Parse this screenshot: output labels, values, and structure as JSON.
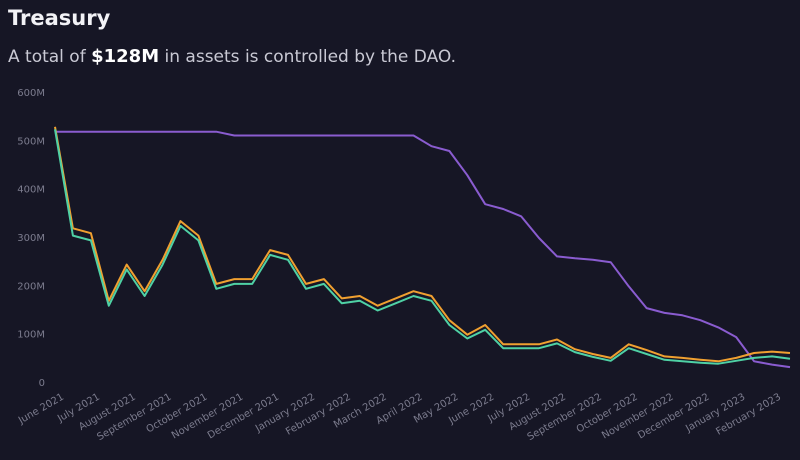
{
  "chart_data": {
    "type": "line",
    "title": "Treasury",
    "subtitle": {
      "before": "A total of ",
      "highlight": "$128M",
      "after": " in assets is controlled by the DAO."
    },
    "categories": [
      "June 2021",
      null,
      "July 2021",
      null,
      "August 2021",
      null,
      "September 2021",
      null,
      "October 2021",
      null,
      "November 2021",
      null,
      "December 2021",
      null,
      "January 2022",
      null,
      "February 2022",
      null,
      "March 2022",
      null,
      "April 2022",
      null,
      "May 2022",
      null,
      "June 2022",
      null,
      "July 2022",
      null,
      "August 2022",
      null,
      "September 2022",
      null,
      "October 2022",
      null,
      "November 2022",
      null,
      "December 2022",
      null,
      "January 2023",
      null,
      "February 2023",
      null
    ],
    "series": [
      {
        "color": "#8a5cd0",
        "values": [
          520,
          520,
          520,
          520,
          520,
          520,
          520,
          520,
          520,
          520,
          512,
          512,
          512,
          512,
          512,
          512,
          512,
          512,
          512,
          512,
          512,
          490,
          480,
          430,
          370,
          360,
          345,
          300,
          262,
          258,
          255,
          250,
          200,
          155,
          145,
          140,
          130,
          115,
          95,
          45,
          38,
          33
        ]
      },
      {
        "color": "#f0a030",
        "values": [
          530,
          320,
          310,
          170,
          245,
          190,
          255,
          335,
          305,
          205,
          215,
          215,
          275,
          265,
          205,
          215,
          175,
          180,
          160,
          175,
          190,
          180,
          130,
          100,
          120,
          80,
          80,
          80,
          90,
          70,
          60,
          52,
          80,
          68,
          55,
          52,
          48,
          45,
          52,
          62,
          65,
          62
        ]
      },
      {
        "color": "#4fd1a5",
        "values": [
          525,
          305,
          295,
          160,
          235,
          180,
          245,
          325,
          295,
          195,
          205,
          205,
          265,
          255,
          195,
          205,
          165,
          170,
          150,
          165,
          180,
          170,
          120,
          92,
          110,
          72,
          72,
          72,
          82,
          64,
          54,
          46,
          72,
          60,
          48,
          45,
          42,
          40,
          46,
          52,
          55,
          50
        ]
      }
    ],
    "ylim": [
      0,
      600
    ],
    "yticks": [
      0,
      {
        "value": 100,
        "label": "100M"
      },
      {
        "value": 200,
        "label": "200M"
      },
      {
        "value": 300,
        "label": "300M"
      },
      {
        "value": 400,
        "label": "400M"
      },
      {
        "value": 500,
        "label": "500M"
      },
      {
        "value": 600,
        "label": "600M"
      }
    ],
    "grid": false
  }
}
